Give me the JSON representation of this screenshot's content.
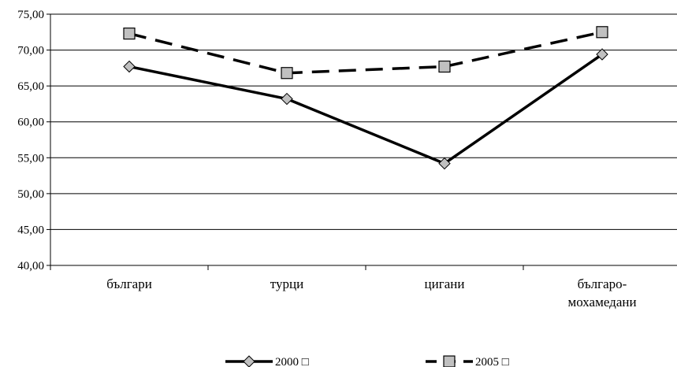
{
  "chart_data": {
    "type": "line",
    "categories": [
      "българи",
      "турци",
      "цигани",
      "българо-мохамедани"
    ],
    "category_lines": [
      [
        "българи"
      ],
      [
        "турци"
      ],
      [
        "цигани"
      ],
      [
        "българо-",
        "мохамедани"
      ]
    ],
    "ylim": [
      40,
      75
    ],
    "ytick_labels": [
      "40,00",
      "45,00",
      "50,00",
      "55,00",
      "60,00",
      "65,00",
      "70,00",
      "75,00"
    ],
    "grid": true,
    "legend_position": "bottom",
    "series": [
      {
        "name": "2000",
        "values": [
          67.7,
          63.2,
          54.2,
          69.4
        ],
        "color": "#000000",
        "dash": "solid",
        "marker": "diamond",
        "marker_fill": "#c0c0c0"
      },
      {
        "name": "2005",
        "values": [
          72.3,
          66.8,
          67.7,
          72.5
        ],
        "color": "#000000",
        "dash": "dashed",
        "marker": "square",
        "marker_fill": "#c0c0c0"
      }
    ],
    "legend_entries": [
      "2000 □",
      "2005 □"
    ]
  }
}
